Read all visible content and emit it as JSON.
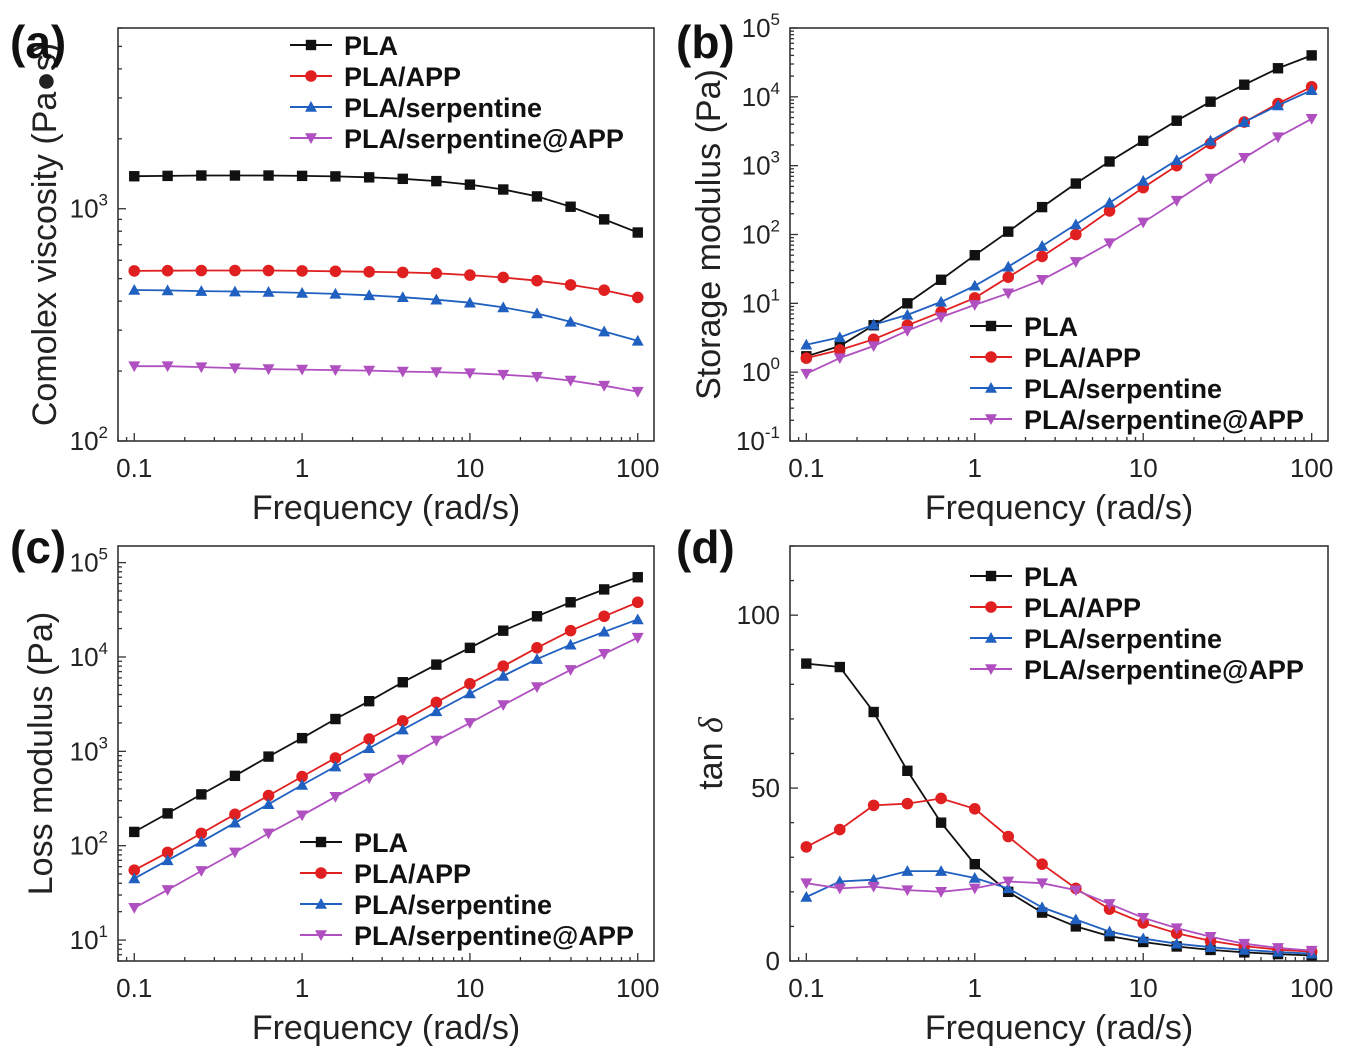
{
  "colors": {
    "PLA": "#111111",
    "PLA/APP": "#e02020",
    "PLA/serpentine": "#2060c0",
    "PLA/serpentine@APP": "#b050c0"
  },
  "markers": {
    "PLA": "square",
    "PLA/APP": "circle",
    "PLA/serpentine": "triangle-up",
    "PLA/serpentine@APP": "triangle-down"
  },
  "chart_data": [
    {
      "panel": "(a)",
      "type": "line",
      "xlabel": "Frequency (rad/s)",
      "ylabel": "Comolex viscosity (Pa●s)",
      "xscale": "log",
      "yscale": "log",
      "xlim": [
        0.08,
        125
      ],
      "ylim": [
        100,
        6000
      ],
      "xticks": [
        {
          "v": 0.1,
          "t": "0.1"
        },
        {
          "v": 1,
          "t": "1"
        },
        {
          "v": 10,
          "t": "10"
        },
        {
          "v": 100,
          "t": "100"
        }
      ],
      "yticks": [
        {
          "v": 100,
          "b": "10",
          "e": "2"
        },
        {
          "v": 1000,
          "b": "10",
          "e": "3"
        }
      ],
      "legend_position": "top-right",
      "x": [
        0.1,
        0.158,
        0.251,
        0.398,
        0.631,
        1,
        1.58,
        2.51,
        3.98,
        6.31,
        10,
        15.8,
        25.1,
        39.8,
        63.1,
        100
      ],
      "series": [
        {
          "name": "PLA",
          "values": [
            1380,
            1385,
            1390,
            1390,
            1390,
            1385,
            1378,
            1365,
            1345,
            1315,
            1270,
            1210,
            1130,
            1020,
            900,
            790
          ]
        },
        {
          "name": "PLA/APP",
          "values": [
            540,
            541,
            542,
            542,
            542,
            540,
            538,
            535,
            532,
            527,
            518,
            506,
            490,
            470,
            446,
            415
          ]
        },
        {
          "name": "PLA/serpentine",
          "values": [
            447,
            445,
            442,
            440,
            438,
            434,
            430,
            424,
            416,
            406,
            394,
            376,
            354,
            326,
            296,
            270
          ]
        },
        {
          "name": "PLA/serpentine@APP",
          "values": [
            210,
            210,
            208,
            206,
            204,
            203,
            202,
            201,
            199,
            198,
            196,
            193,
            189,
            182,
            173,
            163
          ]
        }
      ]
    },
    {
      "panel": "(b)",
      "type": "line",
      "xlabel": "Frequency (rad/s)",
      "ylabel": "Storage modulus (Pa)",
      "xscale": "log",
      "yscale": "log",
      "xlim": [
        0.08,
        125
      ],
      "ylim": [
        0.1,
        100000
      ],
      "xticks": [
        {
          "v": 0.1,
          "t": "0.1"
        },
        {
          "v": 1,
          "t": "1"
        },
        {
          "v": 10,
          "t": "10"
        },
        {
          "v": 100,
          "t": "100"
        }
      ],
      "yticks": [
        {
          "v": 0.1,
          "b": "10",
          "e": "-1"
        },
        {
          "v": 1,
          "b": "10",
          "e": "0"
        },
        {
          "v": 10,
          "b": "10",
          "e": "1"
        },
        {
          "v": 100,
          "b": "10",
          "e": "2"
        },
        {
          "v": 1000,
          "b": "10",
          "e": "3"
        },
        {
          "v": 10000,
          "b": "10",
          "e": "4"
        },
        {
          "v": 100000,
          "b": "10",
          "e": "5"
        }
      ],
      "legend_position": "bottom-right",
      "x": [
        0.1,
        0.158,
        0.251,
        0.398,
        0.631,
        1,
        1.58,
        2.51,
        3.98,
        6.31,
        10,
        15.8,
        25.1,
        39.8,
        63.1,
        100
      ],
      "series": [
        {
          "name": "PLA",
          "values": [
            1.7,
            2.4,
            4.8,
            10,
            22,
            50,
            110,
            250,
            550,
            1150,
            2300,
            4500,
            8500,
            15000,
            26000,
            40000
          ]
        },
        {
          "name": "PLA/APP",
          "values": [
            1.6,
            2.1,
            3.0,
            4.8,
            7.5,
            12,
            24,
            48,
            100,
            220,
            480,
            1000,
            2100,
            4300,
            8000,
            14000
          ]
        },
        {
          "name": "PLA/serpentine",
          "values": [
            2.5,
            3.2,
            4.9,
            6.8,
            10.5,
            18,
            34,
            68,
            140,
            290,
            600,
            1200,
            2300,
            4300,
            7500,
            12500
          ]
        },
        {
          "name": "PLA/serpentine@APP",
          "values": [
            0.95,
            1.6,
            2.4,
            4.0,
            6.3,
            9.5,
            14,
            22,
            40,
            75,
            150,
            310,
            650,
            1300,
            2600,
            4800
          ]
        }
      ]
    },
    {
      "panel": "(c)",
      "type": "line",
      "xlabel": "Frequency (rad/s)",
      "ylabel": "Loss modulus (Pa)",
      "xscale": "log",
      "yscale": "log",
      "xlim": [
        0.08,
        125
      ],
      "ylim": [
        6,
        150000
      ],
      "xticks": [
        {
          "v": 0.1,
          "t": "0.1"
        },
        {
          "v": 1,
          "t": "1"
        },
        {
          "v": 10,
          "t": "10"
        },
        {
          "v": 100,
          "t": "100"
        }
      ],
      "yticks": [
        {
          "v": 10,
          "b": "10",
          "e": "1"
        },
        {
          "v": 100,
          "b": "10",
          "e": "2"
        },
        {
          "v": 1000,
          "b": "10",
          "e": "3"
        },
        {
          "v": 10000,
          "b": "10",
          "e": "4"
        },
        {
          "v": 100000,
          "b": "10",
          "e": "5"
        }
      ],
      "legend_position": "bottom-right",
      "x": [
        0.1,
        0.158,
        0.251,
        0.398,
        0.631,
        1,
        1.58,
        2.51,
        3.98,
        6.31,
        10,
        15.8,
        25.1,
        39.8,
        63.1,
        100
      ],
      "series": [
        {
          "name": "PLA",
          "values": [
            140,
            220,
            350,
            550,
            880,
            1380,
            2200,
            3400,
            5400,
            8300,
            12500,
            19000,
            27000,
            38000,
            52000,
            70000
          ]
        },
        {
          "name": "PLA/APP",
          "values": [
            55,
            85,
            135,
            215,
            340,
            540,
            850,
            1350,
            2100,
            3300,
            5200,
            8000,
            12500,
            19000,
            27000,
            38000
          ]
        },
        {
          "name": "PLA/serpentine",
          "values": [
            45,
            70,
            110,
            175,
            275,
            440,
            690,
            1080,
            1700,
            2650,
            4100,
            6300,
            9500,
            13500,
            18500,
            25000
          ]
        },
        {
          "name": "PLA/serpentine@APP",
          "values": [
            22,
            34,
            54,
            85,
            135,
            210,
            330,
            520,
            820,
            1300,
            2000,
            3100,
            4800,
            7300,
            10800,
            16000
          ]
        }
      ]
    },
    {
      "panel": "(d)",
      "type": "line",
      "xlabel": "Frequency (rad/s)",
      "ylabel": "tan δ",
      "xscale": "log",
      "yscale": "linear",
      "xlim": [
        0.08,
        125
      ],
      "ylim": [
        0,
        120
      ],
      "xticks": [
        {
          "v": 0.1,
          "t": "0.1"
        },
        {
          "v": 1,
          "t": "1"
        },
        {
          "v": 10,
          "t": "10"
        },
        {
          "v": 100,
          "t": "100"
        }
      ],
      "yticks": [
        {
          "v": 0,
          "t": "0"
        },
        {
          "v": 50,
          "t": "50"
        },
        {
          "v": 100,
          "t": "100"
        }
      ],
      "legend_position": "top-right",
      "x": [
        0.1,
        0.158,
        0.251,
        0.398,
        0.631,
        1,
        1.58,
        2.51,
        3.98,
        6.31,
        10,
        15.8,
        25.1,
        39.8,
        63.1,
        100
      ],
      "series": [
        {
          "name": "PLA",
          "values": [
            86,
            85,
            72,
            55,
            40,
            28,
            20,
            14,
            10,
            7.2,
            5.5,
            4.2,
            3.2,
            2.5,
            2.0,
            1.6
          ]
        },
        {
          "name": "PLA/APP",
          "values": [
            33,
            38,
            45,
            45.5,
            47,
            44,
            36,
            28,
            21,
            15,
            11,
            8,
            5.8,
            4.3,
            3.3,
            2.7
          ]
        },
        {
          "name": "PLA/serpentine",
          "values": [
            18.5,
            23,
            23.5,
            26,
            26,
            24,
            21,
            15.5,
            12,
            8.5,
            6.5,
            5,
            4,
            3.2,
            2.6,
            2.1
          ]
        },
        {
          "name": "PLA/serpentine@APP",
          "values": [
            22.5,
            21,
            21.5,
            20.5,
            20,
            21,
            23,
            22.5,
            20.5,
            16.5,
            12.5,
            9.5,
            7,
            5,
            3.8,
            3.0
          ]
        }
      ]
    }
  ]
}
